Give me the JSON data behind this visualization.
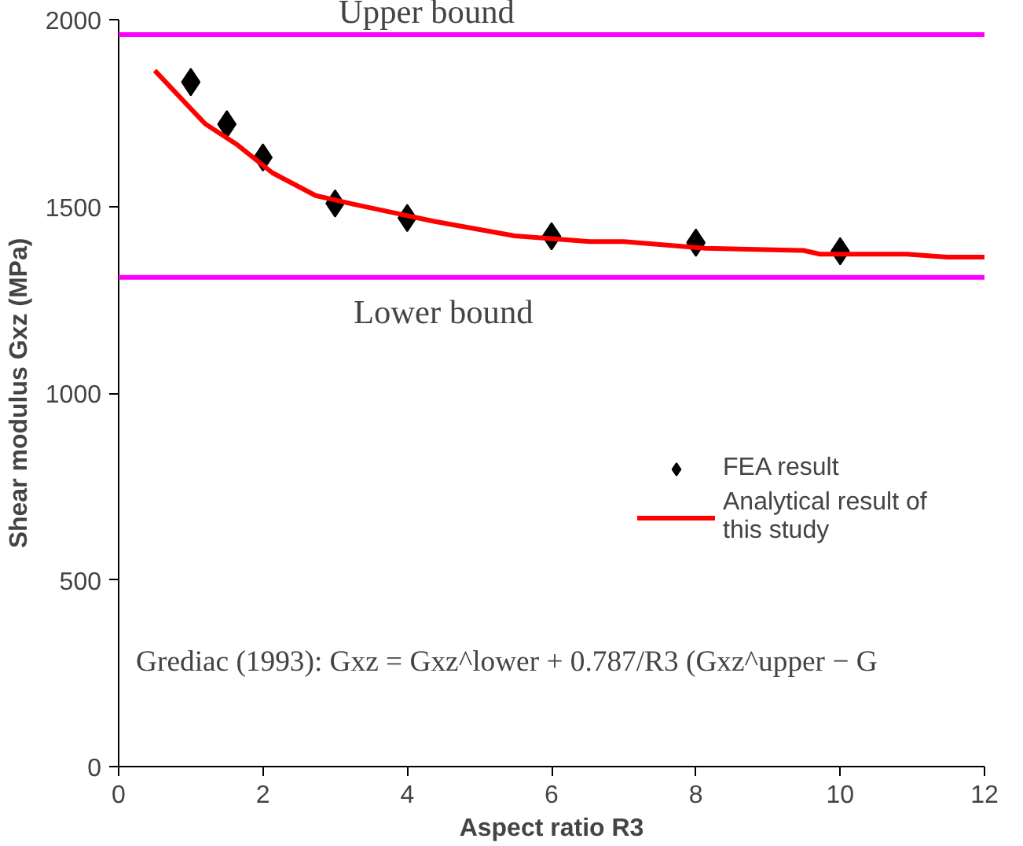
{
  "chart_data": {
    "type": "scatter",
    "xlabel": "Aspect ratio R3",
    "ylabel": "Shear modulus Gxz (MPa)",
    "xlim": [
      0,
      12
    ],
    "xticks": [
      0,
      2,
      4,
      6,
      8,
      10,
      12
    ],
    "ylim": [
      0,
      2000
    ],
    "yticks": [
      0,
      500,
      1000,
      1500,
      2000
    ],
    "grid": false,
    "legend": "right",
    "series": [
      {
        "name": "FEA result",
        "marker": "diamond",
        "color": "#000000",
        "x": [
          1,
          1.5,
          2,
          3,
          4,
          6,
          8,
          10
        ],
        "values": [
          1833,
          1720,
          1631,
          1508,
          1469,
          1420,
          1403,
          1380
        ]
      },
      {
        "name": "Analytical result of this study",
        "type": "line",
        "line_style": "solid",
        "color": "#ff0000",
        "x": [
          0.5,
          1.2,
          1.65,
          2.13,
          2.73,
          3.25,
          4.37,
          5.49,
          6.53,
          7.0,
          8.13,
          9.49,
          9.72,
          10.92,
          11.48,
          12
        ],
        "values": [
          1864,
          1721,
          1664,
          1590,
          1529,
          1506,
          1460,
          1421,
          1406,
          1406,
          1388,
          1382,
          1372,
          1372,
          1364,
          1364
        ]
      }
    ],
    "ref_lines": [
      {
        "axis": "y",
        "value": 1960,
        "label": "Upper bound",
        "color": "#ff00ff"
      },
      {
        "axis": "y",
        "value": 1310,
        "label": "Lower bound",
        "color": "#ff00ff"
      }
    ],
    "annotations": [
      "Grediac (1993): Gxz = Gxz^lower + 0.787/R3 (Gxz^upper − G"
    ]
  }
}
